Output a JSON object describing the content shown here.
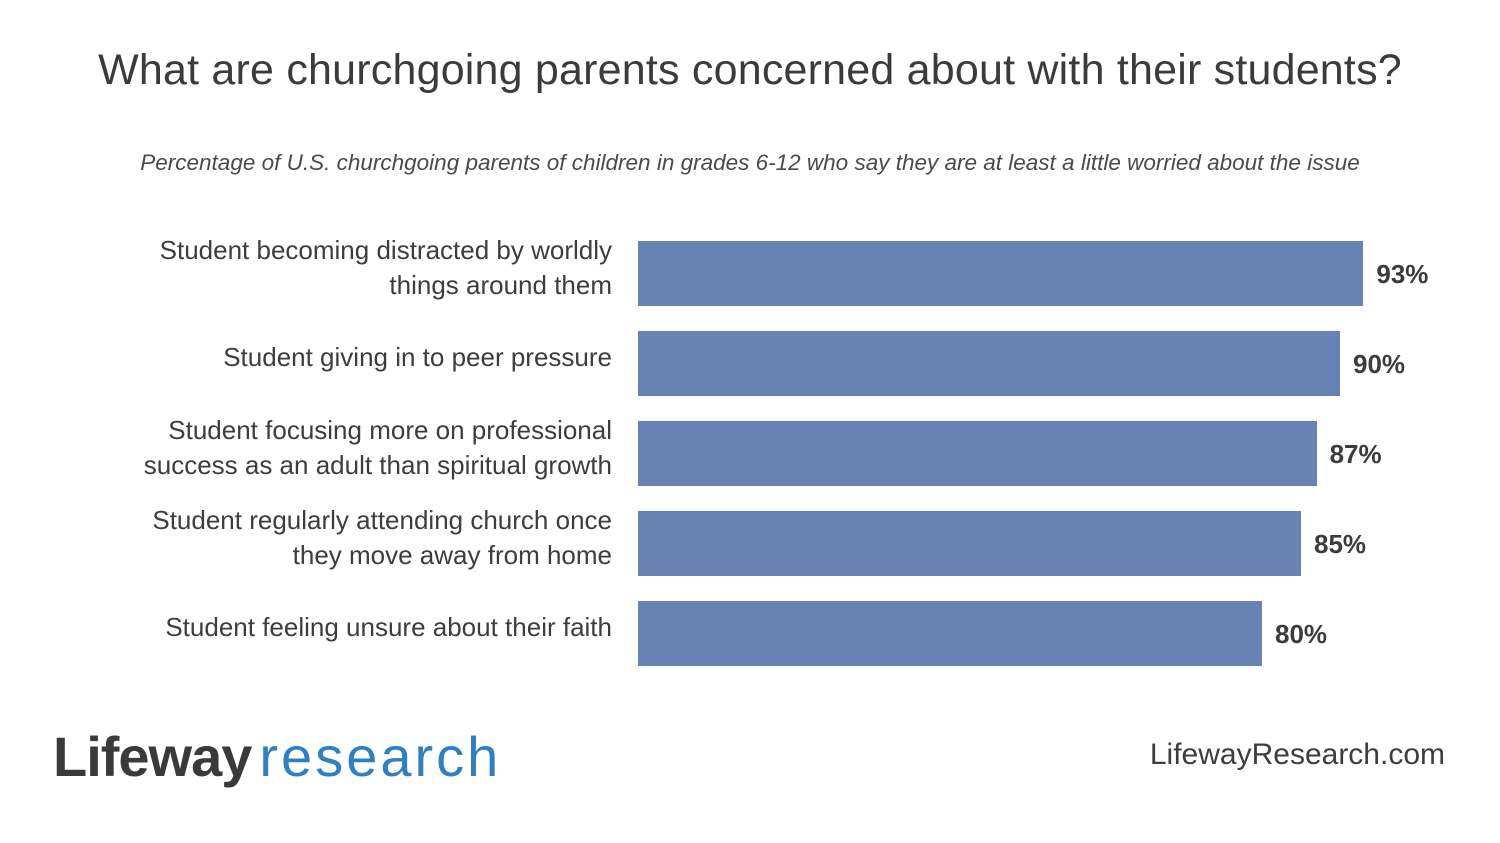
{
  "chart_data": {
    "type": "bar",
    "orientation": "horizontal",
    "title": "What are churchgoing parents concerned about with their students?",
    "subtitle": "Percentage of U.S. churchgoing parents of children in grades 6-12 who say they are at least a little worried about the issue",
    "categories": [
      "Student becoming distracted by worldly\nthings around them",
      "Student giving in to peer pressure",
      "Student focusing more on professional\nsuccess as an adult than spiritual growth",
      "Student regularly attending church once\nthey move away from home",
      "Student feeling unsure about their faith"
    ],
    "values": [
      93,
      90,
      87,
      85,
      80
    ],
    "value_labels": [
      "93%",
      "90%",
      "87%",
      "85%",
      "80%"
    ],
    "bar_color": "#6882b6",
    "xlim": [
      0,
      100
    ],
    "grid": false,
    "legend": false
  },
  "footer": {
    "logo_word1": "Lifeway",
    "logo_word2": "research",
    "logo_colors": {
      "word1": "#3a3a3a",
      "word2": "#2f7fc1"
    },
    "website": "LifewayResearch.com"
  }
}
